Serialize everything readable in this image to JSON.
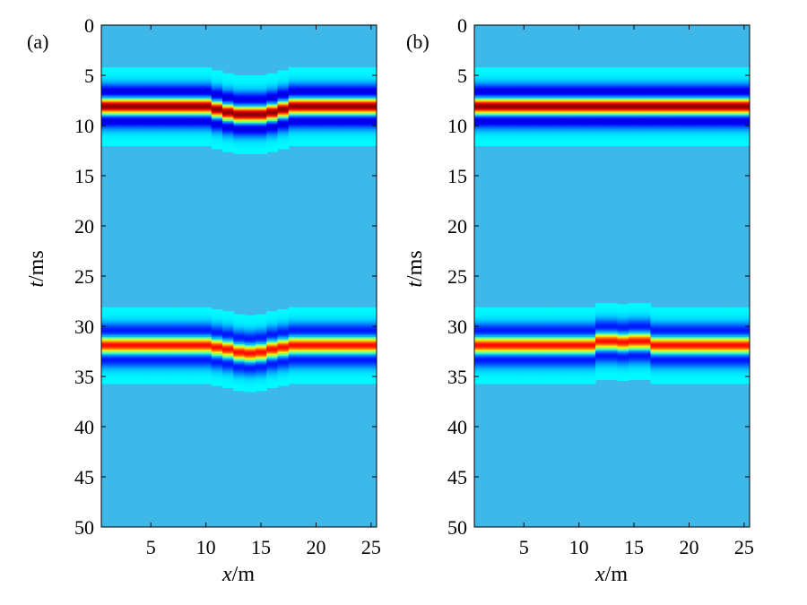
{
  "chart_data": [
    {
      "type": "heatmap",
      "panel_label": "(a)",
      "xlabel_var": "x",
      "xlabel_unit": "/m",
      "ylabel_var": "t",
      "ylabel_unit": "/ms",
      "xlim": [
        0.5,
        25.5
      ],
      "ylim": [
        0,
        50
      ],
      "xticks": [
        5,
        10,
        15,
        20,
        25
      ],
      "yticks": [
        0,
        5,
        10,
        15,
        20,
        25,
        30,
        35,
        40,
        45,
        50
      ],
      "traces": 25,
      "background_color": "#3db8e8",
      "events": [
        {
          "t_center_per_trace": [
            8.1,
            8.1,
            8.1,
            8.1,
            8.1,
            8.1,
            8.1,
            8.1,
            8.1,
            8.1,
            8.4,
            8.7,
            8.9,
            8.9,
            8.9,
            8.7,
            8.4,
            8.1,
            8.1,
            8.1,
            8.1,
            8.1,
            8.1,
            8.1,
            8.1
          ],
          "amplitude": 1.0
        },
        {
          "t_center_per_trace": [
            31.9,
            31.9,
            31.9,
            31.9,
            31.9,
            31.9,
            31.9,
            31.9,
            31.9,
            31.9,
            32.1,
            32.3,
            32.6,
            32.7,
            32.6,
            32.3,
            32.1,
            31.9,
            31.9,
            31.9,
            31.9,
            31.9,
            31.9,
            31.9,
            31.9
          ],
          "amplitude": 0.8
        }
      ]
    },
    {
      "type": "heatmap",
      "panel_label": "(b)",
      "xlabel_var": "x",
      "xlabel_unit": "/m",
      "ylabel_var": "t",
      "ylabel_unit": "/ms",
      "xlim": [
        0.5,
        25.5
      ],
      "ylim": [
        0,
        50
      ],
      "xticks": [
        5,
        10,
        15,
        20,
        25
      ],
      "yticks": [
        0,
        5,
        10,
        15,
        20,
        25,
        30,
        35,
        40,
        45,
        50
      ],
      "traces": 25,
      "background_color": "#3db8e8",
      "events": [
        {
          "t_center_per_trace": [
            8.1,
            8.1,
            8.1,
            8.1,
            8.1,
            8.1,
            8.1,
            8.1,
            8.1,
            8.1,
            8.1,
            8.1,
            8.1,
            8.1,
            8.1,
            8.1,
            8.1,
            8.1,
            8.1,
            8.1,
            8.1,
            8.1,
            8.1,
            8.1,
            8.1
          ],
          "amplitude": 1.0
        },
        {
          "t_center_per_trace": [
            31.9,
            31.9,
            31.9,
            31.9,
            31.9,
            31.9,
            31.9,
            31.9,
            31.9,
            31.9,
            31.9,
            31.5,
            31.5,
            31.6,
            31.5,
            31.5,
            31.9,
            31.9,
            31.9,
            31.9,
            31.9,
            31.9,
            31.9,
            31.9,
            31.9
          ],
          "amplitude": 0.8
        }
      ]
    }
  ]
}
